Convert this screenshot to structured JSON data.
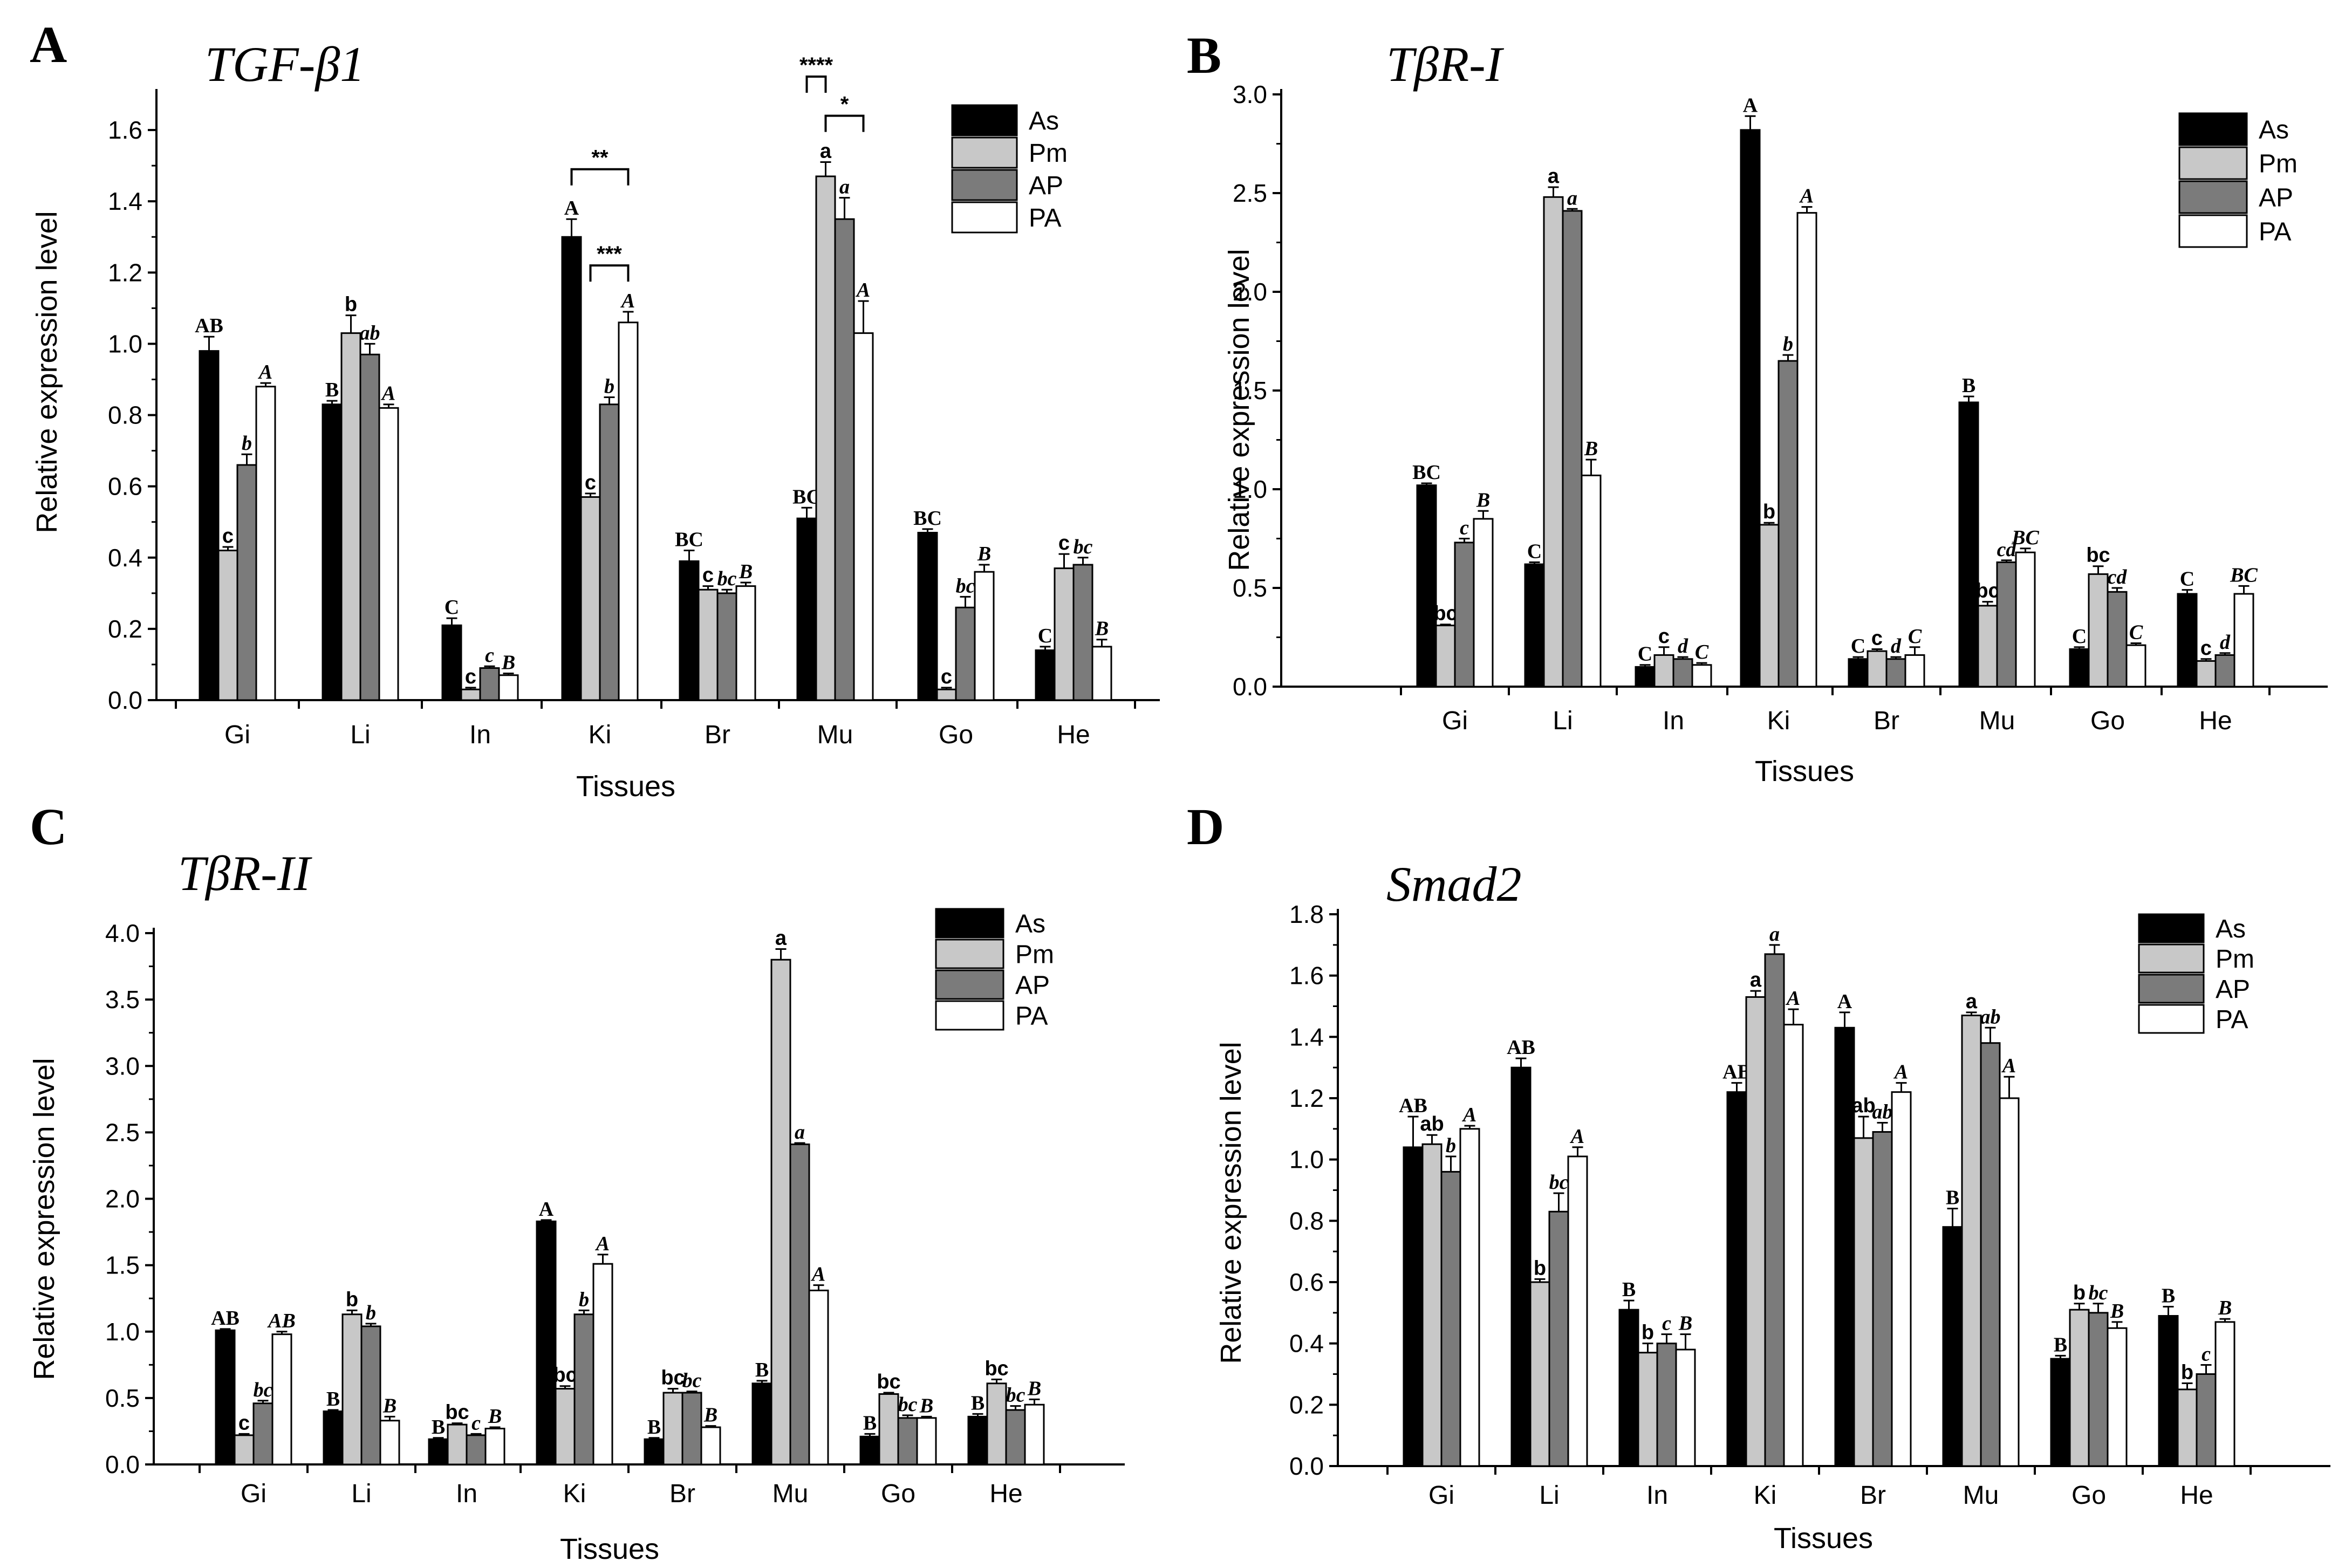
{
  "figure": {
    "series_names": [
      "As",
      "Pm",
      "AP",
      "PA"
    ],
    "colors": {
      "As": "#000000",
      "Pm": "#c8c8c8",
      "AP": "#7b7b7b",
      "PA": "#ffffff",
      "stroke": "#000000"
    }
  },
  "chart_data": [
    {
      "panel": "A",
      "title": "TGF-β1",
      "type": "bar",
      "xlabel": "Tissues",
      "ylabel": "Relative expression level",
      "ylim": [
        0,
        1.7
      ],
      "yticks": [
        "0.0",
        "0.2",
        "0.4",
        "0.6",
        "0.8",
        "1.0",
        "1.2",
        "1.4",
        "1.6"
      ],
      "ytick_values": [
        0,
        0.2,
        0.4,
        0.6,
        0.8,
        1.0,
        1.2,
        1.4,
        1.6
      ],
      "categories": [
        "Gi",
        "Li",
        "In",
        "Ki",
        "Br",
        "Mu",
        "Go",
        "He"
      ],
      "legend_position": "top-right",
      "series": [
        {
          "name": "As",
          "values": [
            0.98,
            0.83,
            0.21,
            1.3,
            0.39,
            0.51,
            0.47,
            0.14
          ],
          "errors": [
            0.04,
            0.01,
            0.02,
            0.05,
            0.03,
            0.03,
            0.01,
            0.01
          ],
          "labels": [
            "AB",
            "B",
            "C",
            "A",
            "BC",
            "BC",
            "BC",
            "C"
          ]
        },
        {
          "name": "Pm",
          "values": [
            0.42,
            1.03,
            0.03,
            0.57,
            0.31,
            1.47,
            0.03,
            0.37
          ],
          "errors": [
            0.01,
            0.05,
            0.005,
            0.01,
            0.01,
            0.04,
            0.005,
            0.04
          ],
          "labels": [
            "c",
            "b",
            "c",
            "c",
            "c",
            "a",
            "c",
            "c"
          ]
        },
        {
          "name": "AP",
          "values": [
            0.66,
            0.97,
            0.09,
            0.83,
            0.3,
            1.35,
            0.26,
            0.38
          ],
          "errors": [
            0.03,
            0.03,
            0.005,
            0.02,
            0.01,
            0.06,
            0.03,
            0.02
          ],
          "labels": [
            "b",
            "ab",
            "c",
            "b",
            "bc",
            "a",
            "bc",
            "bc"
          ]
        },
        {
          "name": "PA",
          "values": [
            0.88,
            0.82,
            0.07,
            1.06,
            0.32,
            1.03,
            0.36,
            0.15
          ],
          "errors": [
            0.01,
            0.01,
            0.005,
            0.03,
            0.01,
            0.09,
            0.02,
            0.02
          ],
          "labels": [
            "A",
            "A",
            "B",
            "A",
            "B",
            "A",
            "B",
            "B"
          ]
        }
      ],
      "brackets": [
        {
          "category": "Ki",
          "from": "As",
          "to": "PA",
          "stars": "**",
          "level": 1.49
        },
        {
          "category": "Ki",
          "from": "Pm",
          "to": "PA",
          "stars": "***",
          "level": 1.22
        },
        {
          "category": "Mu",
          "from": "As",
          "to": "Pm",
          "stars": "****",
          "level": 1.75
        },
        {
          "category": "Mu",
          "from": "Pm",
          "to": "PA",
          "stars": "*",
          "level": 1.64
        }
      ]
    },
    {
      "panel": "B",
      "title": "TβR-I",
      "type": "bar",
      "xlabel": "Tissues",
      "ylabel": "Relative expression level",
      "ylim": [
        0,
        3.0
      ],
      "yticks": [
        "0.0",
        "0.5",
        "1.0",
        "1.5",
        "2.0",
        "2.5",
        "3.0"
      ],
      "ytick_values": [
        0,
        0.5,
        1.0,
        1.5,
        2.0,
        2.5,
        3.0
      ],
      "categories": [
        "Gi",
        "Li",
        "In",
        "Ki",
        "Br",
        "Mu",
        "Go",
        "He"
      ],
      "legend_position": "top-right",
      "series": [
        {
          "name": "As",
          "values": [
            1.02,
            0.62,
            0.1,
            2.82,
            0.14,
            1.44,
            0.19,
            0.47
          ],
          "errors": [
            0.01,
            0.01,
            0.01,
            0.07,
            0.01,
            0.03,
            0.01,
            0.02
          ],
          "labels": [
            "BC",
            "C",
            "C",
            "A",
            "C",
            "B",
            "C",
            "C"
          ]
        },
        {
          "name": "Pm",
          "values": [
            0.31,
            2.48,
            0.16,
            0.82,
            0.18,
            0.41,
            0.57,
            0.13
          ],
          "errors": [
            0.005,
            0.05,
            0.04,
            0.01,
            0.01,
            0.02,
            0.04,
            0.01
          ],
          "labels": [
            "bc",
            "a",
            "c",
            "b",
            "c",
            "bc",
            "bc",
            "c"
          ]
        },
        {
          "name": "AP",
          "values": [
            0.73,
            2.41,
            0.14,
            1.65,
            0.14,
            0.63,
            0.48,
            0.16
          ],
          "errors": [
            0.02,
            0.01,
            0.01,
            0.03,
            0.01,
            0.01,
            0.02,
            0.01
          ],
          "labels": [
            "c",
            "a",
            "d",
            "b",
            "d",
            "cd",
            "cd",
            "d"
          ]
        },
        {
          "name": "PA",
          "values": [
            0.85,
            1.07,
            0.11,
            2.4,
            0.16,
            0.68,
            0.21,
            0.47
          ],
          "errors": [
            0.04,
            0.08,
            0.01,
            0.03,
            0.04,
            0.02,
            0.01,
            0.04
          ],
          "labels": [
            "B",
            "B",
            "C",
            "A",
            "C",
            "BC",
            "C",
            "BC"
          ]
        }
      ],
      "brackets": []
    },
    {
      "panel": "C",
      "title": "TβR-II",
      "type": "bar",
      "xlabel": "Tissues",
      "ylabel": "Relative expression level",
      "ylim": [
        0,
        4.0
      ],
      "yticks": [
        "0.0",
        "0.5",
        "1.0",
        "1.5",
        "2.0",
        "2.5",
        "3.0",
        "3.5",
        "4.0"
      ],
      "ytick_values": [
        0,
        0.5,
        1.0,
        1.5,
        2.0,
        2.5,
        3.0,
        3.5,
        4.0
      ],
      "categories": [
        "Gi",
        "Li",
        "In",
        "Ki",
        "Br",
        "Mu",
        "Go",
        "He"
      ],
      "legend_position": "top-right",
      "series": [
        {
          "name": "As",
          "values": [
            1.01,
            0.4,
            0.19,
            1.83,
            0.19,
            0.61,
            0.21,
            0.36
          ],
          "errors": [
            0.01,
            0.01,
            0.01,
            0.01,
            0.01,
            0.02,
            0.02,
            0.02
          ],
          "labels": [
            "AB",
            "B",
            "B",
            "A",
            "B",
            "B",
            "B",
            "B"
          ]
        },
        {
          "name": "Pm",
          "values": [
            0.22,
            1.13,
            0.3,
            0.57,
            0.54,
            3.8,
            0.53,
            0.61
          ],
          "errors": [
            0.01,
            0.03,
            0.01,
            0.02,
            0.03,
            0.08,
            0.01,
            0.03
          ],
          "labels": [
            "c",
            "b",
            "bc",
            "bc",
            "bc",
            "a",
            "bc",
            "bc"
          ]
        },
        {
          "name": "AP",
          "values": [
            0.46,
            1.04,
            0.22,
            1.13,
            0.54,
            2.41,
            0.35,
            0.41
          ],
          "errors": [
            0.02,
            0.02,
            0.01,
            0.03,
            0.01,
            0.01,
            0.02,
            0.03
          ],
          "labels": [
            "bc",
            "b",
            "c",
            "b",
            "bc",
            "a",
            "bc",
            "bc"
          ]
        },
        {
          "name": "PA",
          "values": [
            0.98,
            0.33,
            0.27,
            1.51,
            0.28,
            1.31,
            0.35,
            0.45
          ],
          "errors": [
            0.02,
            0.03,
            0.01,
            0.07,
            0.01,
            0.04,
            0.01,
            0.04
          ],
          "labels": [
            "AB",
            "B",
            "B",
            "A",
            "B",
            "A",
            "B",
            "B"
          ]
        }
      ],
      "brackets": []
    },
    {
      "panel": "D",
      "title": "Smad2",
      "type": "bar",
      "xlabel": "Tissues",
      "ylabel": "Relative expression level",
      "ylim": [
        0,
        1.8
      ],
      "yticks": [
        "0.0",
        "0.2",
        "0.4",
        "0.6",
        "0.8",
        "1.0",
        "1.2",
        "1.4",
        "1.6",
        "1.8"
      ],
      "ytick_values": [
        0,
        0.2,
        0.4,
        0.6,
        0.8,
        1.0,
        1.2,
        1.4,
        1.6,
        1.8
      ],
      "categories": [
        "Gi",
        "Li",
        "In",
        "Ki",
        "Br",
        "Mu",
        "Go",
        "He"
      ],
      "legend_position": "top-right",
      "series": [
        {
          "name": "As",
          "values": [
            1.04,
            1.3,
            0.51,
            1.22,
            1.43,
            0.78,
            0.35,
            0.49
          ],
          "errors": [
            0.1,
            0.03,
            0.03,
            0.03,
            0.05,
            0.06,
            0.01,
            0.03
          ],
          "labels": [
            "AB",
            "AB",
            "B",
            "AB",
            "A",
            "B",
            "B",
            "B"
          ]
        },
        {
          "name": "Pm",
          "values": [
            1.05,
            0.6,
            0.37,
            1.53,
            1.07,
            1.47,
            0.51,
            0.25
          ],
          "errors": [
            0.03,
            0.01,
            0.03,
            0.02,
            0.07,
            0.01,
            0.02,
            0.02
          ],
          "labels": [
            "ab",
            "b",
            "b",
            "a",
            "ab",
            "a",
            "b",
            "b"
          ]
        },
        {
          "name": "AP",
          "values": [
            0.96,
            0.83,
            0.4,
            1.67,
            1.09,
            1.38,
            0.5,
            0.3
          ],
          "errors": [
            0.05,
            0.06,
            0.03,
            0.03,
            0.03,
            0.05,
            0.03,
            0.03
          ],
          "labels": [
            "b",
            "bc",
            "c",
            "a",
            "ab",
            "ab",
            "bc",
            "c"
          ]
        },
        {
          "name": "PA",
          "values": [
            1.1,
            1.01,
            0.38,
            1.44,
            1.22,
            1.2,
            0.45,
            0.47
          ],
          "errors": [
            0.01,
            0.03,
            0.05,
            0.05,
            0.03,
            0.07,
            0.02,
            0.01
          ],
          "labels": [
            "A",
            "A",
            "B",
            "A",
            "A",
            "A",
            "B",
            "B"
          ]
        }
      ],
      "brackets": []
    }
  ]
}
